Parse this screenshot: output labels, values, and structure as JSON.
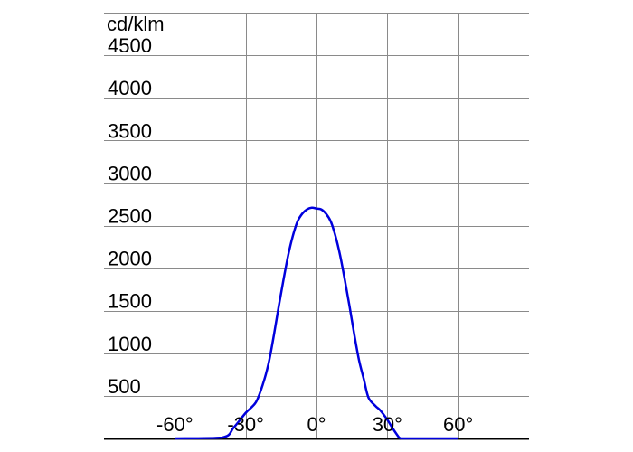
{
  "chart_data": {
    "type": "line",
    "title": "",
    "ylabel": "cd/klm",
    "xlabel": "",
    "grid": true,
    "xlim": [
      -90,
      90
    ],
    "ylim": [
      0,
      5000
    ],
    "x_ticks": [
      -60,
      -30,
      0,
      30,
      60
    ],
    "x_tick_labels": [
      "-60°",
      "-30°",
      "0°",
      "30°",
      "60°"
    ],
    "y_ticks": [
      500,
      1000,
      1500,
      2000,
      2500,
      3000,
      3500,
      4000,
      4500
    ],
    "y_tick_labels": [
      "500",
      "1000",
      "1500",
      "2000",
      "2500",
      "3000",
      "3500",
      "4000",
      "4500"
    ],
    "series": [
      {
        "color": "#0000dd",
        "x": [
          -60,
          -40,
          -35,
          -30,
          -27,
          -25,
          -22,
          -20,
          -18,
          -16,
          -14,
          -12,
          -10,
          -8,
          -6,
          -4,
          -2,
          0,
          2,
          4,
          6,
          8,
          10,
          12,
          14,
          16,
          18,
          20,
          22,
          25,
          27,
          30,
          32,
          35,
          36,
          40,
          60
        ],
        "y": [
          0,
          10,
          130,
          300,
          380,
          460,
          700,
          920,
          1220,
          1550,
          1860,
          2150,
          2380,
          2550,
          2640,
          2690,
          2710,
          2700,
          2690,
          2640,
          2550,
          2380,
          2150,
          1860,
          1550,
          1220,
          920,
          700,
          480,
          380,
          330,
          220,
          130,
          10,
          0,
          0,
          0
        ]
      }
    ]
  }
}
